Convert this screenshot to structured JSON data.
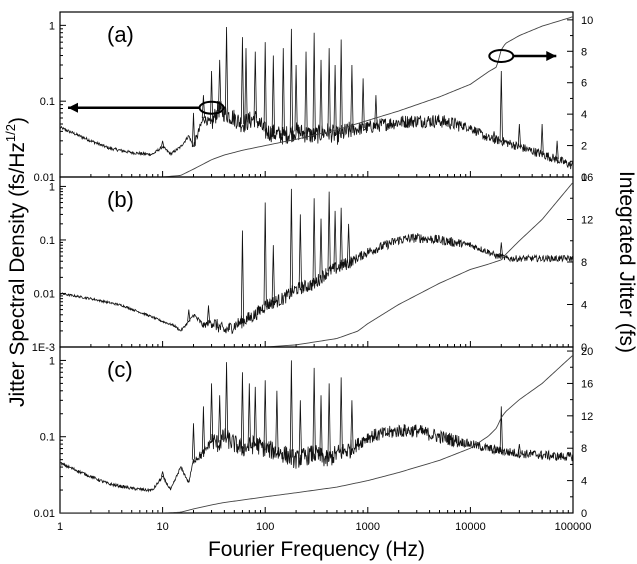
{
  "chart_data": [
    {
      "type": "line",
      "panel_label": "(a)",
      "x_scale": "log",
      "xlim": [
        1,
        100000
      ],
      "left_axis": {
        "scale": "log",
        "ylim": [
          0.01,
          1.5
        ],
        "ticks": [
          {
            "v": 1,
            "label": "1"
          },
          {
            "v": 0.1,
            "label": "0.1"
          },
          {
            "v": 0.01,
            "label": "0.01"
          }
        ]
      },
      "right_axis": {
        "scale": "linear",
        "ylim": [
          0,
          10.5
        ],
        "ticks": [
          {
            "v": 0,
            "label": "0"
          },
          {
            "v": 2,
            "label": "2"
          },
          {
            "v": 4,
            "label": "4"
          },
          {
            "v": 6,
            "label": "6"
          },
          {
            "v": 8,
            "label": "8"
          },
          {
            "v": 10,
            "label": "10"
          }
        ]
      },
      "series": [
        {
          "axis": "left",
          "x": [
            1,
            2,
            3,
            5,
            7,
            8,
            10,
            12,
            15,
            18,
            20,
            25,
            30,
            35,
            40,
            50,
            60,
            80,
            100,
            150,
            200,
            300,
            400,
            500,
            700,
            1000,
            1500,
            2000,
            3000,
            5000,
            7000,
            10000,
            15000,
            20000,
            30000,
            50000,
            70000,
            100000
          ],
          "y": [
            0.045,
            0.03,
            0.024,
            0.021,
            0.02,
            0.02,
            0.025,
            0.02,
            0.025,
            0.035,
            0.025,
            0.06,
            0.05,
            0.08,
            0.07,
            0.06,
            0.05,
            0.06,
            0.04,
            0.035,
            0.04,
            0.035,
            0.04,
            0.035,
            0.042,
            0.045,
            0.05,
            0.053,
            0.055,
            0.055,
            0.05,
            0.045,
            0.032,
            0.03,
            0.025,
            0.02,
            0.017,
            0.014
          ],
          "peaks": [
            {
              "x": 10,
              "y": 0.03
            },
            {
              "x": 20,
              "y": 0.07
            },
            {
              "x": 25,
              "y": 0.12
            },
            {
              "x": 30,
              "y": 0.25
            },
            {
              "x": 36,
              "y": 0.35
            },
            {
              "x": 42,
              "y": 0.95
            },
            {
              "x": 60,
              "y": 0.7
            },
            {
              "x": 65,
              "y": 0.5
            },
            {
              "x": 80,
              "y": 0.45
            },
            {
              "x": 100,
              "y": 0.6
            },
            {
              "x": 120,
              "y": 0.4
            },
            {
              "x": 150,
              "y": 0.5
            },
            {
              "x": 180,
              "y": 0.9
            },
            {
              "x": 200,
              "y": 0.3
            },
            {
              "x": 250,
              "y": 0.45
            },
            {
              "x": 300,
              "y": 0.8
            },
            {
              "x": 350,
              "y": 0.35
            },
            {
              "x": 420,
              "y": 0.5
            },
            {
              "x": 480,
              "y": 0.3
            },
            {
              "x": 550,
              "y": 0.65
            },
            {
              "x": 700,
              "y": 0.3
            },
            {
              "x": 900,
              "y": 0.2
            },
            {
              "x": 1200,
              "y": 0.12
            },
            {
              "x": 20000,
              "y": 0.25
            },
            {
              "x": 17000,
              "y": 0.04
            },
            {
              "x": 30000,
              "y": 0.05
            },
            {
              "x": 50000,
              "y": 0.05
            },
            {
              "x": 70000,
              "y": 0.03
            }
          ]
        },
        {
          "axis": "right",
          "x": [
            1,
            10,
            15,
            20,
            30,
            40,
            60,
            100,
            200,
            500,
            1000,
            2000,
            5000,
            10000,
            15000,
            18000,
            20000,
            22000,
            30000,
            50000,
            100000
          ],
          "y": [
            0,
            0,
            0.1,
            0.5,
            1.1,
            1.4,
            1.7,
            2.0,
            2.4,
            3.0,
            3.6,
            4.2,
            5.1,
            5.9,
            6.7,
            7.0,
            8.1,
            8.5,
            9.0,
            9.6,
            10.2
          ]
        }
      ]
    },
    {
      "type": "line",
      "panel_label": "(b)",
      "x_scale": "log",
      "xlim": [
        1,
        100000
      ],
      "left_axis": {
        "scale": "log",
        "ylim": [
          0.001,
          1.5
        ],
        "ticks": [
          {
            "v": 1,
            "label": "1"
          },
          {
            "v": 0.1,
            "label": "0.1"
          },
          {
            "v": 0.01,
            "label": "0.01"
          },
          {
            "v": 0.001,
            "label": "1E-3"
          }
        ]
      },
      "right_axis": {
        "scale": "linear",
        "ylim": [
          0,
          16
        ],
        "ticks": [
          {
            "v": 0,
            "label": "0"
          },
          {
            "v": 4,
            "label": "4"
          },
          {
            "v": 8,
            "label": "8"
          },
          {
            "v": 12,
            "label": "12"
          },
          {
            "v": 16,
            "label": "16"
          }
        ]
      },
      "series": [
        {
          "axis": "left",
          "x": [
            1,
            2,
            4,
            7,
            10,
            13,
            15,
            18,
            20,
            25,
            30,
            40,
            50,
            60,
            80,
            100,
            150,
            200,
            300,
            400,
            500,
            700,
            1000,
            1500,
            2000,
            3000,
            5000,
            7000,
            10000,
            15000,
            18000,
            20000,
            22000,
            30000,
            50000,
            100000
          ],
          "y": [
            0.01,
            0.008,
            0.006,
            0.004,
            0.003,
            0.0025,
            0.002,
            0.003,
            0.004,
            0.0025,
            0.003,
            0.002,
            0.0025,
            0.003,
            0.004,
            0.006,
            0.008,
            0.012,
            0.015,
            0.025,
            0.03,
            0.04,
            0.06,
            0.08,
            0.1,
            0.11,
            0.1,
            0.09,
            0.08,
            0.06,
            0.05,
            0.05,
            0.045,
            0.045,
            0.045,
            0.045
          ],
          "peaks": [
            {
              "x": 18,
              "y": 0.005
            },
            {
              "x": 28,
              "y": 0.006
            },
            {
              "x": 60,
              "y": 0.15
            },
            {
              "x": 100,
              "y": 0.5
            },
            {
              "x": 120,
              "y": 0.08
            },
            {
              "x": 180,
              "y": 0.9
            },
            {
              "x": 220,
              "y": 0.3
            },
            {
              "x": 300,
              "y": 0.6
            },
            {
              "x": 350,
              "y": 0.25
            },
            {
              "x": 420,
              "y": 0.8
            },
            {
              "x": 480,
              "y": 0.35
            },
            {
              "x": 550,
              "y": 0.4
            },
            {
              "x": 650,
              "y": 0.2
            },
            {
              "x": 20000,
              "y": 0.09
            }
          ]
        },
        {
          "axis": "right",
          "x": [
            1,
            100,
            200,
            500,
            800,
            1000,
            2000,
            5000,
            10000,
            15000,
            20000,
            22000,
            30000,
            50000,
            100000
          ],
          "y": [
            0,
            0,
            0.2,
            0.8,
            1.5,
            2.2,
            4.0,
            6.0,
            7.3,
            7.8,
            8.2,
            8.7,
            10.0,
            12.0,
            15.5
          ]
        }
      ]
    },
    {
      "type": "line",
      "panel_label": "(c)",
      "x_scale": "log",
      "xlim": [
        1,
        100000
      ],
      "left_axis": {
        "scale": "log",
        "ylim": [
          0.01,
          1.5
        ],
        "ticks": [
          {
            "v": 1,
            "label": "1"
          },
          {
            "v": 0.1,
            "label": "0.1"
          },
          {
            "v": 0.01,
            "label": "0.01"
          }
        ]
      },
      "right_axis": {
        "scale": "linear",
        "ylim": [
          0,
          20.5
        ],
        "ticks": [
          {
            "v": 0,
            "label": "0"
          },
          {
            "v": 4,
            "label": "4"
          },
          {
            "v": 8,
            "label": "8"
          },
          {
            "v": 12,
            "label": "12"
          },
          {
            "v": 16,
            "label": "16"
          },
          {
            "v": 20,
            "label": "20"
          }
        ]
      },
      "series": [
        {
          "axis": "left",
          "x": [
            1,
            2,
            3,
            5,
            7,
            8,
            10,
            12,
            15,
            18,
            20,
            25,
            30,
            35,
            40,
            50,
            60,
            80,
            100,
            150,
            200,
            300,
            400,
            500,
            700,
            1000,
            1500,
            2000,
            3000,
            5000,
            7000,
            10000,
            15000,
            20000,
            30000,
            50000,
            70000,
            100000
          ],
          "y": [
            0.045,
            0.03,
            0.024,
            0.021,
            0.02,
            0.02,
            0.03,
            0.02,
            0.04,
            0.025,
            0.05,
            0.06,
            0.09,
            0.08,
            0.1,
            0.08,
            0.07,
            0.08,
            0.07,
            0.06,
            0.05,
            0.06,
            0.05,
            0.06,
            0.07,
            0.1,
            0.11,
            0.12,
            0.12,
            0.1,
            0.09,
            0.08,
            0.07,
            0.065,
            0.06,
            0.058,
            0.055,
            0.055
          ],
          "peaks": [
            {
              "x": 10,
              "y": 0.035
            },
            {
              "x": 20,
              "y": 0.15
            },
            {
              "x": 25,
              "y": 0.25
            },
            {
              "x": 30,
              "y": 0.5
            },
            {
              "x": 36,
              "y": 0.35
            },
            {
              "x": 42,
              "y": 0.95
            },
            {
              "x": 60,
              "y": 0.7
            },
            {
              "x": 70,
              "y": 0.5
            },
            {
              "x": 80,
              "y": 0.45
            },
            {
              "x": 100,
              "y": 0.55
            },
            {
              "x": 130,
              "y": 0.4
            },
            {
              "x": 180,
              "y": 1.0
            },
            {
              "x": 220,
              "y": 0.3
            },
            {
              "x": 300,
              "y": 0.8
            },
            {
              "x": 350,
              "y": 0.35
            },
            {
              "x": 420,
              "y": 0.5
            },
            {
              "x": 550,
              "y": 0.6
            },
            {
              "x": 700,
              "y": 0.3
            },
            {
              "x": 20000,
              "y": 0.25
            },
            {
              "x": 17000,
              "y": 0.06
            },
            {
              "x": 30000,
              "y": 0.08
            },
            {
              "x": 50000,
              "y": 0.05
            }
          ]
        },
        {
          "axis": "right",
          "x": [
            1,
            10,
            15,
            20,
            30,
            40,
            60,
            100,
            200,
            500,
            1000,
            2000,
            5000,
            10000,
            15000,
            18000,
            20000,
            22000,
            30000,
            50000,
            100000
          ],
          "y": [
            0,
            0,
            0.1,
            0.5,
            1.0,
            1.3,
            1.6,
            2.0,
            2.5,
            3.2,
            4.0,
            5.0,
            6.5,
            8.0,
            9.5,
            10.5,
            11.8,
            12.5,
            14.0,
            16.0,
            19.5
          ]
        }
      ]
    }
  ],
  "x_axis": {
    "label": "Fourier Frequency (Hz)",
    "ticks": [
      {
        "v": 1,
        "label": "1"
      },
      {
        "v": 10,
        "label": "10"
      },
      {
        "v": 100,
        "label": "100"
      },
      {
        "v": 1000,
        "label": "1000"
      },
      {
        "v": 10000,
        "label": "10000"
      },
      {
        "v": 100000,
        "label": "100000"
      }
    ]
  },
  "y_left_label_main": "Jitter Spectral Density (fs/Hz",
  "y_left_label_sup": "1/2",
  "y_left_label_tail": ")",
  "y_right_label": "Integrated Jitter (fs)",
  "annotations": [
    {
      "panel": 0,
      "text": "",
      "arrow": "left",
      "ellipse_x": 30,
      "ellipse_y": 0.082,
      "axis": "left"
    },
    {
      "panel": 0,
      "text": "",
      "arrow": "right",
      "ellipse_x": 20000,
      "ellipse_y": 7.7,
      "axis": "right"
    }
  ]
}
